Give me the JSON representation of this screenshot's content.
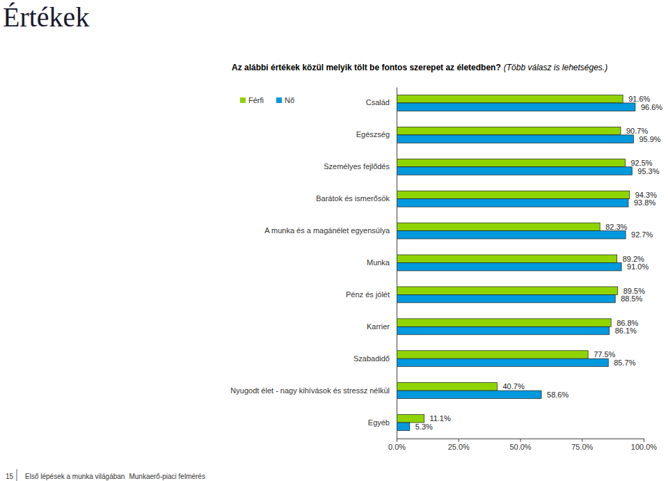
{
  "page": {
    "heading": "Értékek",
    "page_number": 15,
    "footer": [
      "Első lépések a munka világában",
      "Munkaerő-piaci felmérés"
    ]
  },
  "chart_data": {
    "type": "bar",
    "orientation": "horizontal",
    "title": "Az alábbi értékek közül melyik tölt be fontos szerepet az életedben?",
    "subtitle": "(Több válasz is lehetséges.)",
    "categories": [
      "Család",
      "Egészség",
      "Személyes fejlődés",
      "Barátok és ismerősök",
      "A munka és a magánélet egyensúlya",
      "Munka",
      "Pénz és jólét",
      "Karrier",
      "Szabadidő",
      "Nyugodt élet - nagy kihívások és stressz nélkül",
      "Egyéb"
    ],
    "series": [
      {
        "name": "Férfi",
        "color": "#8fd400",
        "values": [
          91.6,
          90.7,
          92.5,
          94.3,
          82.3,
          89.2,
          89.5,
          86.8,
          77.5,
          40.7,
          11.1
        ],
        "value_labels": [
          "91.6%",
          "90.7%",
          "92.5%",
          "94.3%",
          "82.3%",
          "89.2%",
          "89.5%",
          "86.8%",
          "77.5%",
          "40.7%",
          "11.1%"
        ]
      },
      {
        "name": "Nő",
        "color": "#0099dd",
        "values": [
          96.6,
          95.9,
          95.3,
          93.8,
          92.7,
          91.0,
          88.5,
          86.1,
          85.7,
          58.6,
          5.3
        ],
        "value_labels": [
          "96.6%",
          "95.9%",
          "95.3%",
          "93.8%",
          "92.7%",
          "91.0%",
          "88.5%",
          "86.1%",
          "85.7%",
          "58.6%",
          "5.3%"
        ]
      }
    ],
    "xlim": [
      0,
      100
    ],
    "xticks": [
      {
        "value": 0,
        "label": "0.0%"
      },
      {
        "value": 25,
        "label": "25.0%"
      },
      {
        "value": 50,
        "label": "50.0%"
      },
      {
        "value": 75,
        "label": "75.0%"
      },
      {
        "value": 100,
        "label": "100.0%"
      }
    ],
    "grid": false,
    "legend": "top-left",
    "data_labels": true
  }
}
